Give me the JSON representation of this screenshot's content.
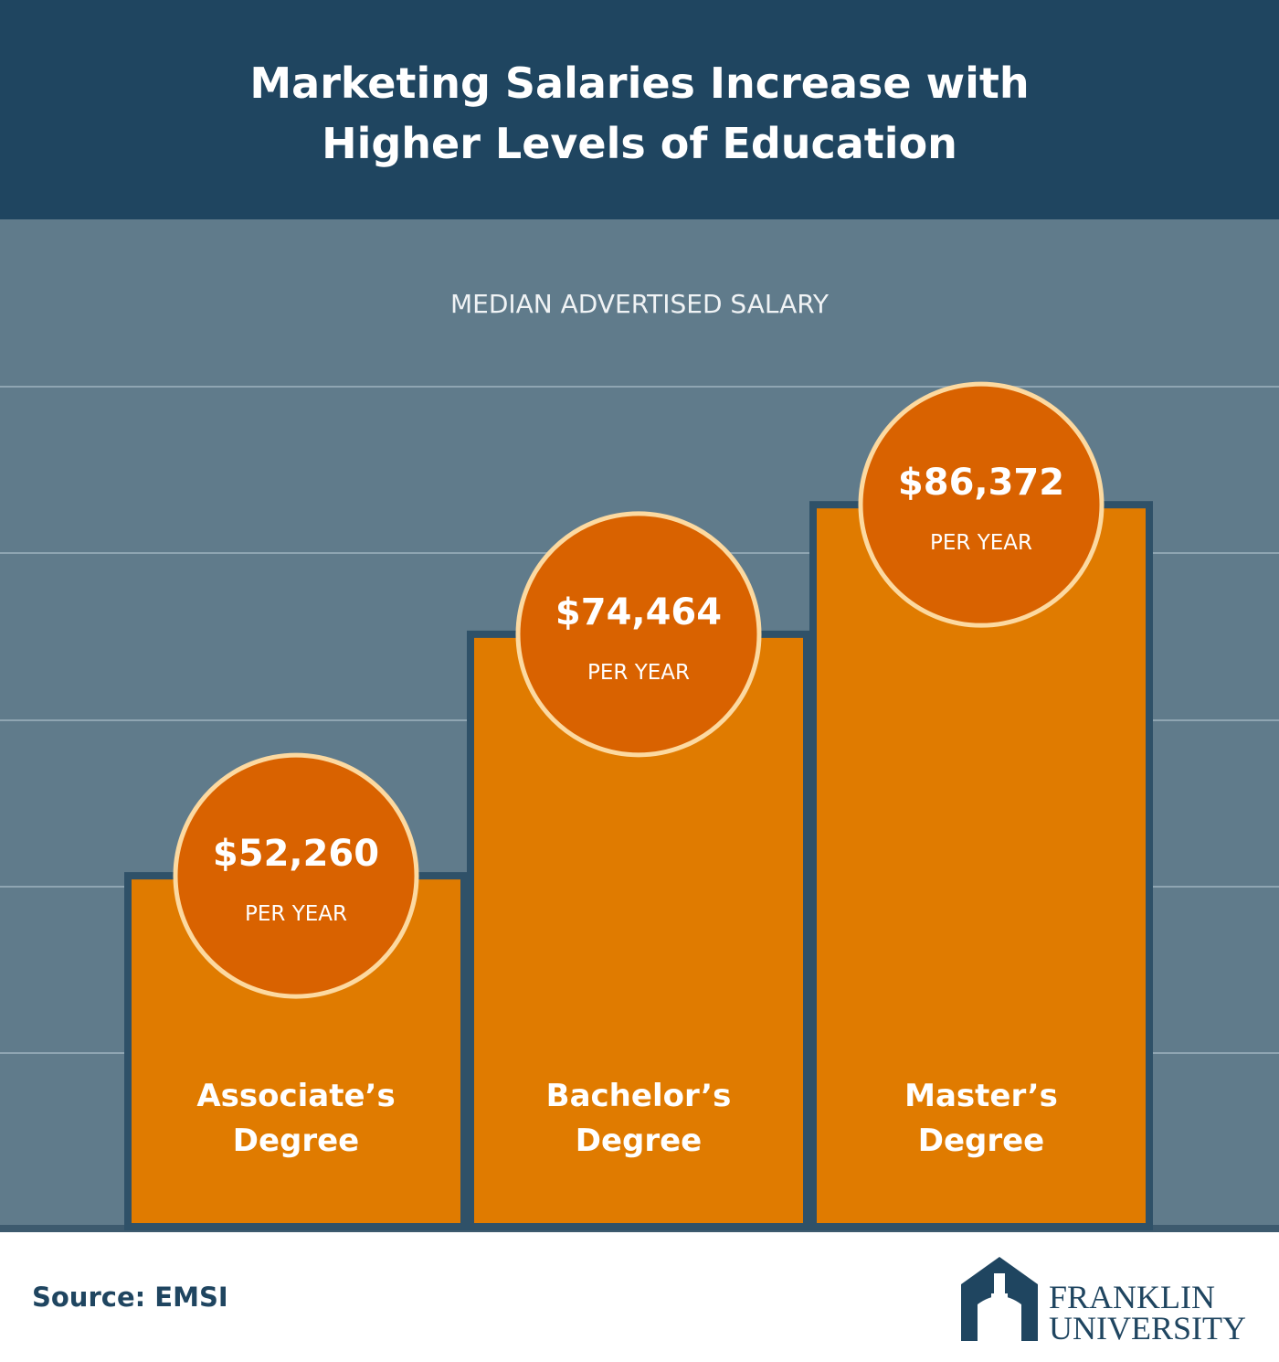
{
  "chart_data": {
    "type": "bar",
    "title": "Marketing Salaries Increase with Higher Levels of Education",
    "subtitle": "MEDIAN ADVERTISED SALARY",
    "categories": [
      "Associate’s Degree",
      "Bachelor’s Degree",
      "Master’s Degree"
    ],
    "values": [
      52260,
      74464,
      86372
    ],
    "value_labels": [
      "$52,260",
      "$74,464",
      "$86,372"
    ],
    "value_unit_label": "PER YEAR",
    "color": "#e07b00",
    "ylim": [
      20000,
      90000
    ],
    "source": "Source: EMSI"
  },
  "logo": {
    "line1": "FRANKLIN",
    "line2": "UNIVERSITY"
  }
}
